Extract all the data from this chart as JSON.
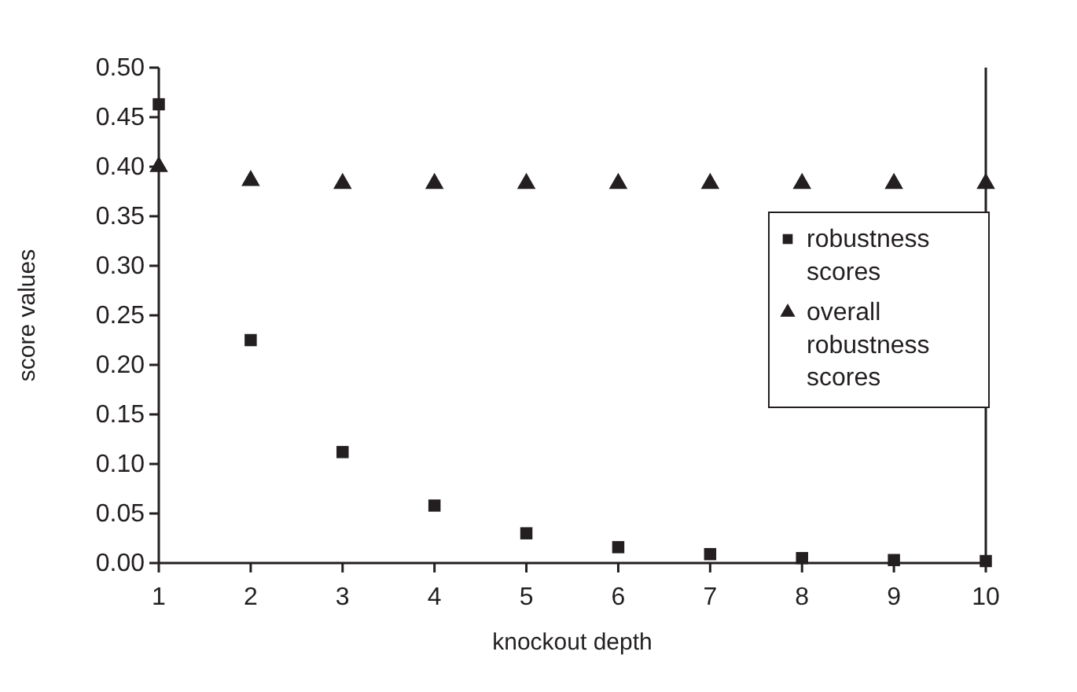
{
  "chart_data": {
    "type": "scatter",
    "xlabel": "knockout depth",
    "ylabel": "score values",
    "x": [
      1,
      2,
      3,
      4,
      5,
      6,
      7,
      8,
      9,
      10
    ],
    "xlim": [
      1,
      10
    ],
    "xticks": [
      1,
      2,
      3,
      4,
      5,
      6,
      7,
      8,
      9,
      10
    ],
    "ylim": [
      0,
      0.5
    ],
    "yticks": [
      {
        "value": 0,
        "label": "0.00"
      },
      {
        "value": 0.05,
        "label": "0.05"
      },
      {
        "value": 0.1,
        "label": "0.10"
      },
      {
        "value": 0.15,
        "label": "0.15"
      },
      {
        "value": 0.2,
        "label": "0.20"
      },
      {
        "value": 0.25,
        "label": "0.25"
      },
      {
        "value": 0.3,
        "label": "0.30"
      },
      {
        "value": 0.35,
        "label": "0.35"
      },
      {
        "value": 0.4,
        "label": "0.40"
      },
      {
        "value": 0.45,
        "label": "0.45"
      },
      {
        "value": 0.5,
        "label": "0.50"
      }
    ],
    "legend": "right",
    "series": [
      {
        "name": "robustness scores",
        "color": "#231f20",
        "marker": "square",
        "values": [
          0.463,
          0.225,
          0.112,
          0.058,
          0.03,
          0.016,
          0.009,
          0.005,
          0.003,
          0.002
        ]
      },
      {
        "name": "overall robustness scores",
        "color": "#231f20",
        "marker": "triangle",
        "values": [
          0.4,
          0.386,
          0.383,
          0.383,
          0.383,
          0.383,
          0.383,
          0.383,
          0.383,
          0.383
        ]
      }
    ]
  }
}
